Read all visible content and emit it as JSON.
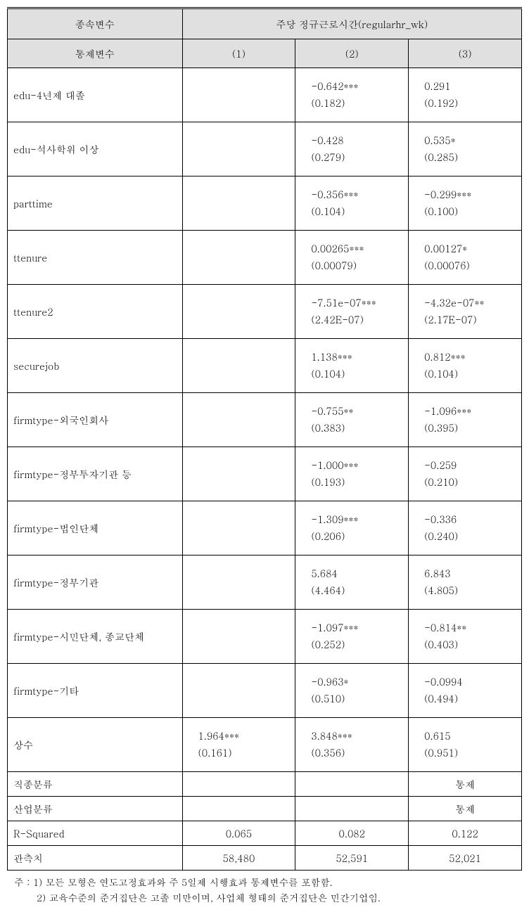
{
  "header": {
    "depvar_label": "종속변수",
    "depvar_name": "주당 정규근로시간(regularhr_wk)",
    "control_label": "통제변수",
    "col1": "(1)",
    "col2": "(2)",
    "col3": "(3)"
  },
  "rows": [
    {
      "label": "edu-4년제 대졸",
      "c1": {
        "v1": "",
        "v2": ""
      },
      "c2": {
        "v1": "-0.642***",
        "v2": "(0.182)"
      },
      "c3": {
        "v1": "0.291",
        "v2": "(0.192)"
      }
    },
    {
      "label": "edu-석사학위 이상",
      "c1": {
        "v1": "",
        "v2": ""
      },
      "c2": {
        "v1": "-0.428",
        "v2": "(0.279)"
      },
      "c3": {
        "v1": "0.535*",
        "v2": "(0.285)"
      }
    },
    {
      "label": "parttime",
      "c1": {
        "v1": "",
        "v2": ""
      },
      "c2": {
        "v1": "-0.356***",
        "v2": "(0.104)"
      },
      "c3": {
        "v1": "-0.299***",
        "v2": "(0.100)"
      }
    },
    {
      "label": "ttenure",
      "c1": {
        "v1": "",
        "v2": ""
      },
      "c2": {
        "v1": "0.00265***",
        "v2": "(0.00079)"
      },
      "c3": {
        "v1": "0.00127*",
        "v2": "(0.00076)"
      }
    },
    {
      "label": "ttenure2",
      "c1": {
        "v1": "",
        "v2": ""
      },
      "c2": {
        "v1": "-7.51e-07***",
        "v2": "(2.42E-07)"
      },
      "c3": {
        "v1": "-4.32e-07**",
        "v2": "(2.17E-07)"
      }
    },
    {
      "label": "securejob",
      "c1": {
        "v1": "",
        "v2": ""
      },
      "c2": {
        "v1": "1.138***",
        "v2": "(0.104)"
      },
      "c3": {
        "v1": "0.812***",
        "v2": "(0.104)"
      }
    },
    {
      "label": "firmtype-외국인회사",
      "c1": {
        "v1": "",
        "v2": ""
      },
      "c2": {
        "v1": "-0.755**",
        "v2": "(0.383)"
      },
      "c3": {
        "v1": "-1.096***",
        "v2": "(0.395)"
      }
    },
    {
      "label": "firmtype-정부투자기관 등",
      "c1": {
        "v1": "",
        "v2": ""
      },
      "c2": {
        "v1": "-1.000***",
        "v2": "(0.193)"
      },
      "c3": {
        "v1": "-0.259",
        "v2": "(0.210)"
      }
    },
    {
      "label": "firmtype-법인단체",
      "c1": {
        "v1": "",
        "v2": ""
      },
      "c2": {
        "v1": "-1.309***",
        "v2": "(0.206)"
      },
      "c3": {
        "v1": "-0.336",
        "v2": "(0.240)"
      }
    },
    {
      "label": "firmtype-정부기관",
      "c1": {
        "v1": "",
        "v2": ""
      },
      "c2": {
        "v1": "5.684",
        "v2": "(4.464)"
      },
      "c3": {
        "v1": "6.843",
        "v2": "(4.805)"
      }
    },
    {
      "label": "firmtype-시민단체, 종교단체",
      "c1": {
        "v1": "",
        "v2": ""
      },
      "c2": {
        "v1": "-1.097***",
        "v2": "(0.252)"
      },
      "c3": {
        "v1": "-0.814**",
        "v2": "(0.403)"
      }
    },
    {
      "label": "firmtype-기타",
      "c1": {
        "v1": "",
        "v2": ""
      },
      "c2": {
        "v1": "-0.963*",
        "v2": "(0.510)"
      },
      "c3": {
        "v1": "-0.0994",
        "v2": "(0.494)"
      }
    },
    {
      "label": "상수",
      "c1": {
        "v1": "1.964***",
        "v2": "(0.161)"
      },
      "c2": {
        "v1": "3.848***",
        "v2": "(0.356)"
      },
      "c3": {
        "v1": "0.615",
        "v2": "(0.951)"
      }
    }
  ],
  "single_rows": [
    {
      "label": "직종분류",
      "c1": "",
      "c2": "",
      "c3": "통제"
    },
    {
      "label": "산업분류",
      "c1": "",
      "c2": "",
      "c3": "통제"
    },
    {
      "label": "R-Squared",
      "c1": "0.065",
      "c2": "0.082",
      "c3": "0.122"
    },
    {
      "label": "관측치",
      "c1": "58,480",
      "c2": "52,591",
      "c3": "52,021"
    }
  ],
  "notes": {
    "n1": "주 : 1) 모든 모형은 연도고정효과와 주 5일제 시행효과 통제변수를 포함함.",
    "n2": "2) 교육수준의 준거집단은 고졸 미만이며, 사업체 형태의 준거집단은 민간기업임."
  },
  "style": {
    "bg": "#ffffff",
    "header_bg": "#e0e0e0",
    "border": "#000000",
    "font_size_pt": 11
  }
}
